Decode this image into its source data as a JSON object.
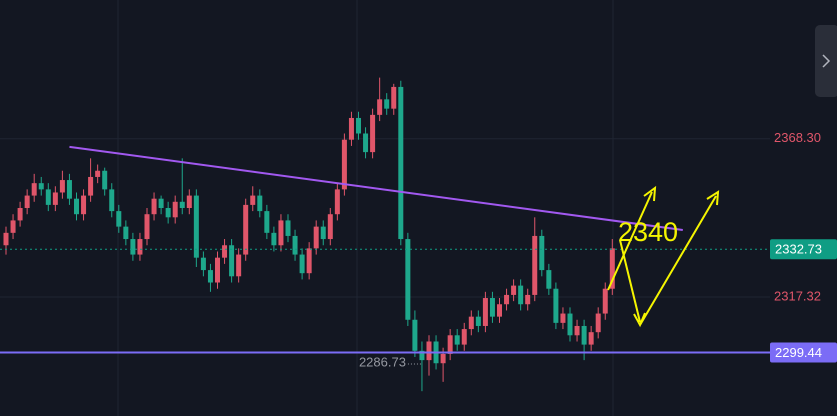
{
  "chart_data": {
    "type": "candlestick",
    "open": [
      2334,
      2338,
      2342,
      2346,
      2350,
      2354,
      2352,
      2347,
      2351,
      2355,
      2349,
      2344,
      2350,
      2356,
      2358,
      2352,
      2345,
      2340,
      2336,
      2331,
      2336,
      2344,
      2349,
      2346,
      2343,
      2348,
      2346,
      2350,
      2330,
      2326,
      2322,
      2330,
      2334,
      2324,
      2331,
      2347,
      2350,
      2345,
      2338,
      2334,
      2342,
      2337,
      2331,
      2325,
      2333,
      2340,
      2336,
      2344,
      2352,
      2368,
      2375,
      2370,
      2364,
      2376,
      2381,
      2378,
      2385,
      2336,
      2310,
      2300,
      2297,
      2303,
      2296,
      2299,
      2305,
      2302,
      2307,
      2311,
      2308,
      2317,
      2311,
      2315,
      2318,
      2321,
      2315,
      2318,
      2337,
      2326,
      2320,
      2309,
      2312,
      2305,
      2308,
      2302,
      2306,
      2312,
      2320
    ],
    "high": [
      2340,
      2344,
      2348,
      2352,
      2357,
      2356,
      2354,
      2353,
      2358,
      2357,
      2351,
      2352,
      2362,
      2360,
      2359,
      2354,
      2347,
      2342,
      2338,
      2338,
      2346,
      2351,
      2350,
      2348,
      2350,
      2362,
      2352,
      2352,
      2332,
      2328,
      2332,
      2336,
      2336,
      2333,
      2349,
      2353,
      2352,
      2347,
      2340,
      2344,
      2344,
      2339,
      2333,
      2335,
      2342,
      2342,
      2346,
      2354,
      2370,
      2377,
      2377,
      2372,
      2378,
      2388,
      2383,
      2386,
      2387,
      2338,
      2313,
      2303,
      2305,
      2305,
      2301,
      2307,
      2307,
      2309,
      2313,
      2313,
      2319,
      2319,
      2317,
      2320,
      2323,
      2323,
      2320,
      2343,
      2339,
      2328,
      2322,
      2314,
      2314,
      2310,
      2310,
      2308,
      2314,
      2322,
      2336
    ],
    "low": [
      2331,
      2336,
      2340,
      2344,
      2348,
      2350,
      2345,
      2345,
      2349,
      2347,
      2342,
      2342,
      2348,
      2354,
      2350,
      2343,
      2338,
      2334,
      2329,
      2329,
      2334,
      2342,
      2344,
      2341,
      2341,
      2344,
      2344,
      2327,
      2324,
      2319,
      2320,
      2328,
      2322,
      2322,
      2329,
      2345,
      2343,
      2336,
      2332,
      2332,
      2335,
      2329,
      2323,
      2323,
      2331,
      2334,
      2334,
      2342,
      2350,
      2366,
      2368,
      2362,
      2362,
      2374,
      2376,
      2376,
      2334,
      2308,
      2298,
      2287,
      2292,
      2294,
      2290,
      2297,
      2300,
      2300,
      2305,
      2306,
      2306,
      2309,
      2309,
      2313,
      2316,
      2313,
      2313,
      2316,
      2324,
      2318,
      2307,
      2307,
      2303,
      2303,
      2297,
      2300,
      2304,
      2310,
      2318
    ],
    "close": [
      2338,
      2342,
      2346,
      2350,
      2354,
      2352,
      2347,
      2351,
      2355,
      2349,
      2344,
      2350,
      2356,
      2358,
      2352,
      2345,
      2340,
      2336,
      2331,
      2336,
      2344,
      2349,
      2346,
      2343,
      2348,
      2346,
      2350,
      2330,
      2326,
      2322,
      2330,
      2334,
      2324,
      2331,
      2347,
      2350,
      2345,
      2338,
      2334,
      2342,
      2337,
      2331,
      2325,
      2333,
      2340,
      2336,
      2344,
      2352,
      2368,
      2375,
      2370,
      2364,
      2376,
      2381,
      2378,
      2385,
      2336,
      2310,
      2300,
      2297,
      2303,
      2296,
      2299,
      2305,
      2302,
      2307,
      2311,
      2308,
      2317,
      2311,
      2315,
      2318,
      2321,
      2315,
      2318,
      2337,
      2326,
      2320,
      2309,
      2312,
      2305,
      2308,
      2302,
      2306,
      2312,
      2320,
      2333
    ],
    "up_color": "#e0566a",
    "down_color": "#1ea88c",
    "ylim": [
      2279,
      2413
    ],
    "yticks": [
      {
        "value": 2368.3,
        "label": "2368.30"
      },
      2317.32
    ],
    "grid": true,
    "last_price": 2332.73,
    "last_price_color": "#0f9d84",
    "support": 2299.44,
    "support_color": "#7b6cf6",
    "trendline": {
      "start": {
        "index": 9,
        "price": 2365.7
      },
      "end": {
        "index": 96,
        "price": 2338.9
      },
      "color": "#a259f0"
    },
    "low_label": 2286.73,
    "annotation": "2340"
  }
}
